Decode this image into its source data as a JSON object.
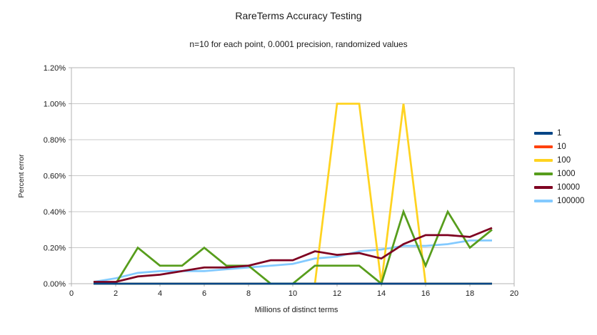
{
  "chart_data": {
    "type": "line",
    "title": "RareTerms Accuracy Testing",
    "subtitle": "n=10 for each point, 0.0001 precision, randomized values",
    "xlabel": "Millions of distinct terms",
    "ylabel": "Percent error",
    "xlim": [
      0,
      20
    ],
    "ylim_percent": [
      0,
      1.2
    ],
    "grid": "horizontal",
    "legend_position": "right",
    "x_tick_values": [
      0,
      2,
      4,
      6,
      8,
      10,
      12,
      14,
      16,
      18,
      20
    ],
    "x_tick_labels": [
      "0",
      "2",
      "4",
      "6",
      "8",
      "10",
      "12",
      "14",
      "16",
      "18",
      "20"
    ],
    "y_tick_values_percent": [
      0.0,
      0.2,
      0.4,
      0.6,
      0.8,
      1.0,
      1.2
    ],
    "y_tick_labels": [
      "0.00%",
      "0.20%",
      "0.40%",
      "0.60%",
      "0.80%",
      "1.00%",
      "1.20%"
    ],
    "x": [
      1,
      2,
      3,
      4,
      5,
      6,
      7,
      8,
      9,
      10,
      11,
      12,
      13,
      14,
      15,
      16,
      17,
      18,
      19
    ],
    "series": [
      {
        "name": "1",
        "color": "#004586",
        "values_percent": [
          0.0,
          0.0,
          0.0,
          0.0,
          0.0,
          0.0,
          0.0,
          0.0,
          0.0,
          0.0,
          0.0,
          0.0,
          0.0,
          0.0,
          0.0,
          0.0,
          0.0,
          0.0,
          0.0
        ]
      },
      {
        "name": "10",
        "color": "#ff420e",
        "values_percent": [
          0.0,
          0.0,
          0.0,
          0.0,
          0.0,
          0.0,
          0.0,
          0.0,
          0.0,
          0.0,
          0.0,
          0.0,
          0.0,
          0.0,
          0.0,
          0.0,
          0.0,
          0.0,
          0.0
        ]
      },
      {
        "name": "100",
        "color": "#ffd320",
        "values_percent": [
          0.0,
          0.0,
          0.0,
          0.0,
          0.0,
          0.0,
          0.0,
          0.0,
          0.0,
          0.0,
          0.0,
          1.0,
          1.0,
          0.0,
          1.0,
          0.0,
          0.0,
          0.0,
          0.0
        ]
      },
      {
        "name": "1000",
        "color": "#579d1c",
        "values_percent": [
          0.01,
          0.0,
          0.2,
          0.1,
          0.1,
          0.2,
          0.1,
          0.1,
          0.0,
          0.0,
          0.1,
          0.1,
          0.1,
          0.0,
          0.4,
          0.1,
          0.4,
          0.2,
          0.3
        ]
      },
      {
        "name": "10000",
        "color": "#7e0021",
        "values_percent": [
          0.01,
          0.01,
          0.04,
          0.05,
          0.07,
          0.09,
          0.09,
          0.1,
          0.13,
          0.13,
          0.18,
          0.16,
          0.17,
          0.14,
          0.22,
          0.27,
          0.27,
          0.26,
          0.31
        ]
      },
      {
        "name": "100000",
        "color": "#83caff",
        "values_percent": [
          0.01,
          0.03,
          0.06,
          0.07,
          0.07,
          0.07,
          0.08,
          0.09,
          0.1,
          0.11,
          0.14,
          0.15,
          0.18,
          0.19,
          0.21,
          0.21,
          0.22,
          0.24,
          0.24
        ]
      }
    ]
  },
  "style_colors": {
    "grid_line": "#c8c8c8",
    "plot_border": "#b3b3b3",
    "text": "#1a1a1a",
    "background": "#ffffff"
  }
}
